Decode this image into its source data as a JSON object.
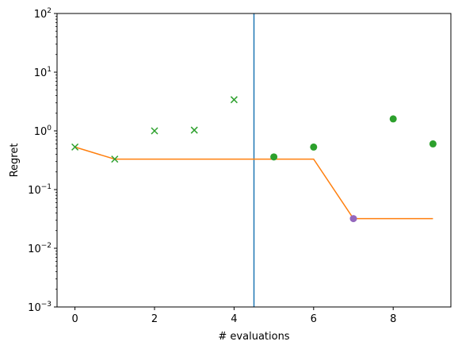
{
  "chart_data": {
    "type": "scatter",
    "title": "",
    "xlabel": "# evaluations",
    "ylabel": "Regret",
    "xlim": [
      -0.45,
      9.45
    ],
    "ylim": [
      0.001,
      100
    ],
    "yscale": "log",
    "grid": false,
    "xticks": [
      0,
      2,
      4,
      6,
      8
    ],
    "xtick_labels": [
      "0",
      "2",
      "4",
      "6",
      "8"
    ],
    "yticks": [
      0.001,
      0.01,
      0.1,
      1,
      10,
      100
    ],
    "ytick_labels": [
      {
        "base": "10",
        "exp": "−3"
      },
      {
        "base": "10",
        "exp": "−2"
      },
      {
        "base": "10",
        "exp": "−1"
      },
      {
        "base": "10",
        "exp": "0"
      },
      {
        "base": "10",
        "exp": "1"
      },
      {
        "base": "10",
        "exp": "2"
      }
    ],
    "vline": {
      "x": 4.5,
      "color": "#1f77b4"
    },
    "series": [
      {
        "marker": "x",
        "color": "#2ca02c",
        "points": [
          {
            "x": 0,
            "y": 0.53
          },
          {
            "x": 1,
            "y": 0.33
          },
          {
            "x": 2,
            "y": 1.0
          },
          {
            "x": 3,
            "y": 1.03
          },
          {
            "x": 4,
            "y": 3.4
          }
        ]
      },
      {
        "marker": "o",
        "color": "#2ca02c",
        "points": [
          {
            "x": 5,
            "y": 0.36
          },
          {
            "x": 6,
            "y": 0.53
          },
          {
            "x": 8,
            "y": 1.6
          },
          {
            "x": 9,
            "y": 0.6
          }
        ]
      },
      {
        "marker": "o",
        "color": "#9467bd",
        "points": [
          {
            "x": 7,
            "y": 0.032
          }
        ]
      },
      {
        "marker": "line",
        "color": "#ff7f0e",
        "points": [
          {
            "x": 0,
            "y": 0.53
          },
          {
            "x": 1,
            "y": 0.33
          },
          {
            "x": 6,
            "y": 0.33
          },
          {
            "x": 7,
            "y": 0.032
          },
          {
            "x": 9,
            "y": 0.032
          }
        ]
      }
    ]
  }
}
